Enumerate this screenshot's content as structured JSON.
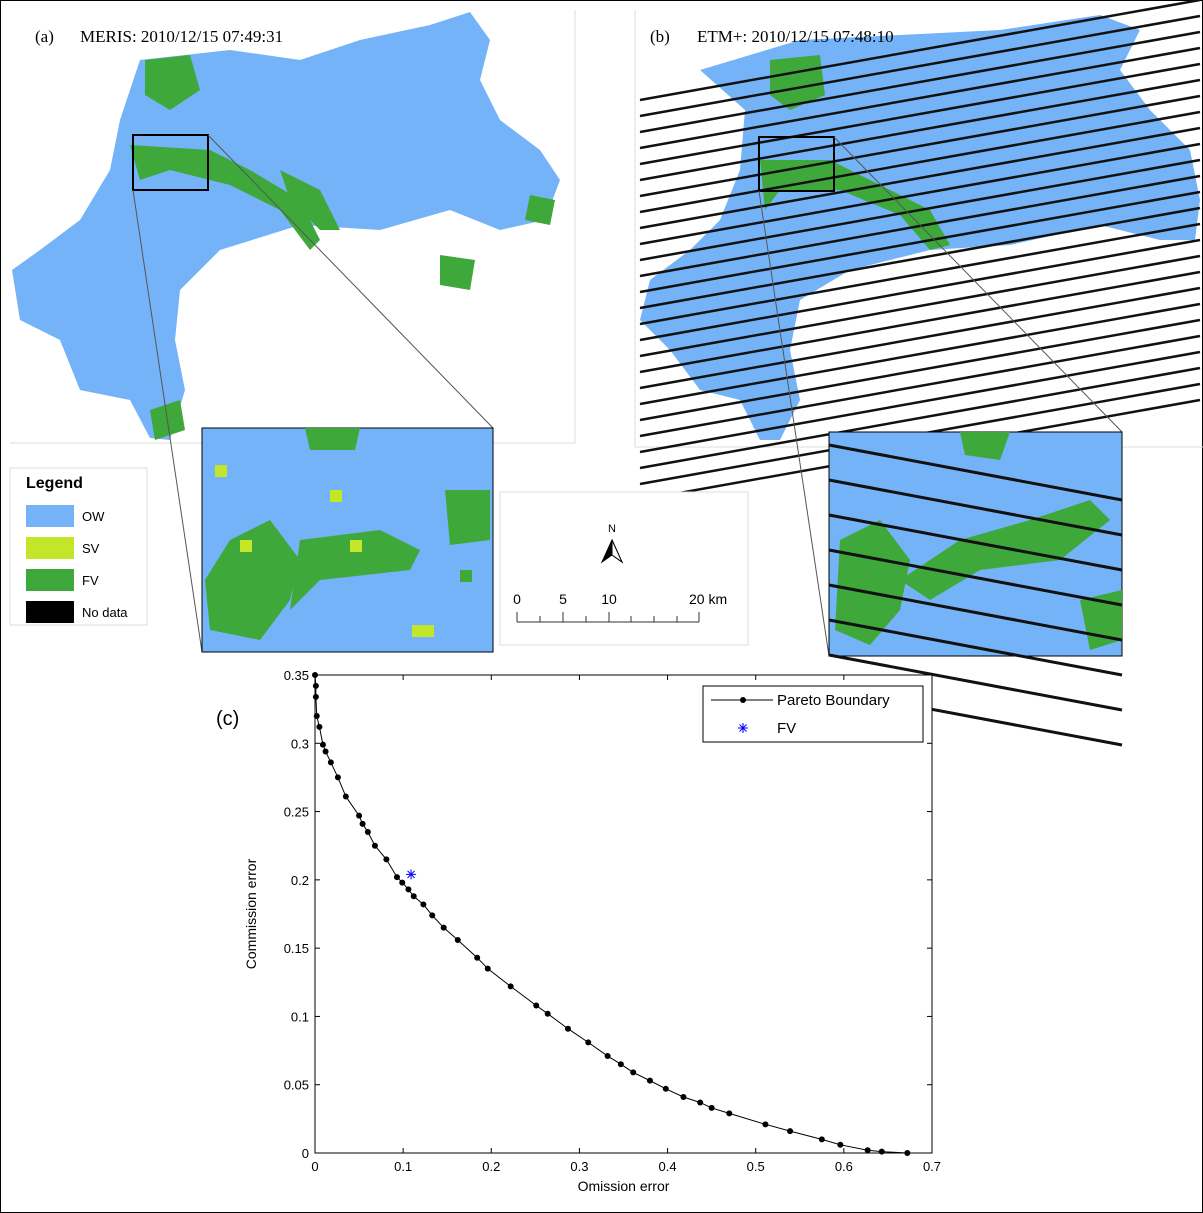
{
  "maps": [
    {
      "label": "(a)",
      "title": "MERIS: 2010/12/15  07:49:31"
    },
    {
      "label": "(b)",
      "title": "ETM+: 2010/12/15  07:48:10"
    }
  ],
  "map_legend": {
    "title": "Legend",
    "items": [
      {
        "name": "OW",
        "color": "#74b3f7"
      },
      {
        "name": "SV",
        "color": "#c3e62a"
      },
      {
        "name": "FV",
        "color": "#3ea83a"
      },
      {
        "name": "No data",
        "color": "#000000"
      }
    ]
  },
  "scale_bar": {
    "north": "N",
    "labels": [
      "0",
      "5",
      "10",
      "20 km"
    ]
  },
  "chart_data": {
    "type": "line",
    "annotation": "(c)",
    "x_label": "Omission error",
    "y_label": "Commission error",
    "xlim": [
      0,
      0.7
    ],
    "xticks": [
      0,
      0.1,
      0.2,
      0.3,
      0.4,
      0.5,
      0.6,
      0.7
    ],
    "ylim": [
      0,
      0.35
    ],
    "yticks": [
      0,
      0.05,
      0.1,
      0.15,
      0.2,
      0.25,
      0.3,
      0.35
    ],
    "legend": "upper right",
    "series": [
      {
        "name": "Pareto Boundary",
        "color": "#000000",
        "marker": "dot",
        "x": [
          0,
          0.001,
          0.001,
          0.002,
          0.005,
          0.009,
          0.012,
          0.018,
          0.026,
          0.035,
          0.05,
          0.054,
          0.06,
          0.068,
          0.081,
          0.093,
          0.099,
          0.106,
          0.112,
          0.123,
          0.133,
          0.146,
          0.162,
          0.184,
          0.196,
          0.222,
          0.251,
          0.264,
          0.287,
          0.31,
          0.332,
          0.347,
          0.361,
          0.38,
          0.398,
          0.418,
          0.437,
          0.45,
          0.47,
          0.511,
          0.539,
          0.575,
          0.596,
          0.627,
          0.643,
          0.672
        ],
        "values": [
          0.35,
          0.342,
          0.334,
          0.32,
          0.312,
          0.299,
          0.294,
          0.286,
          0.275,
          0.261,
          0.247,
          0.241,
          0.235,
          0.225,
          0.215,
          0.202,
          0.198,
          0.193,
          0.188,
          0.182,
          0.174,
          0.165,
          0.156,
          0.143,
          0.135,
          0.122,
          0.108,
          0.102,
          0.091,
          0.081,
          0.071,
          0.065,
          0.059,
          0.053,
          0.047,
          0.041,
          0.037,
          0.033,
          0.029,
          0.021,
          0.016,
          0.01,
          0.006,
          0.002,
          0.001,
          0
        ]
      },
      {
        "name": "FV",
        "color": "#0000ff",
        "marker": "star",
        "x": [
          0.109
        ],
        "values": [
          0.204
        ]
      }
    ]
  }
}
